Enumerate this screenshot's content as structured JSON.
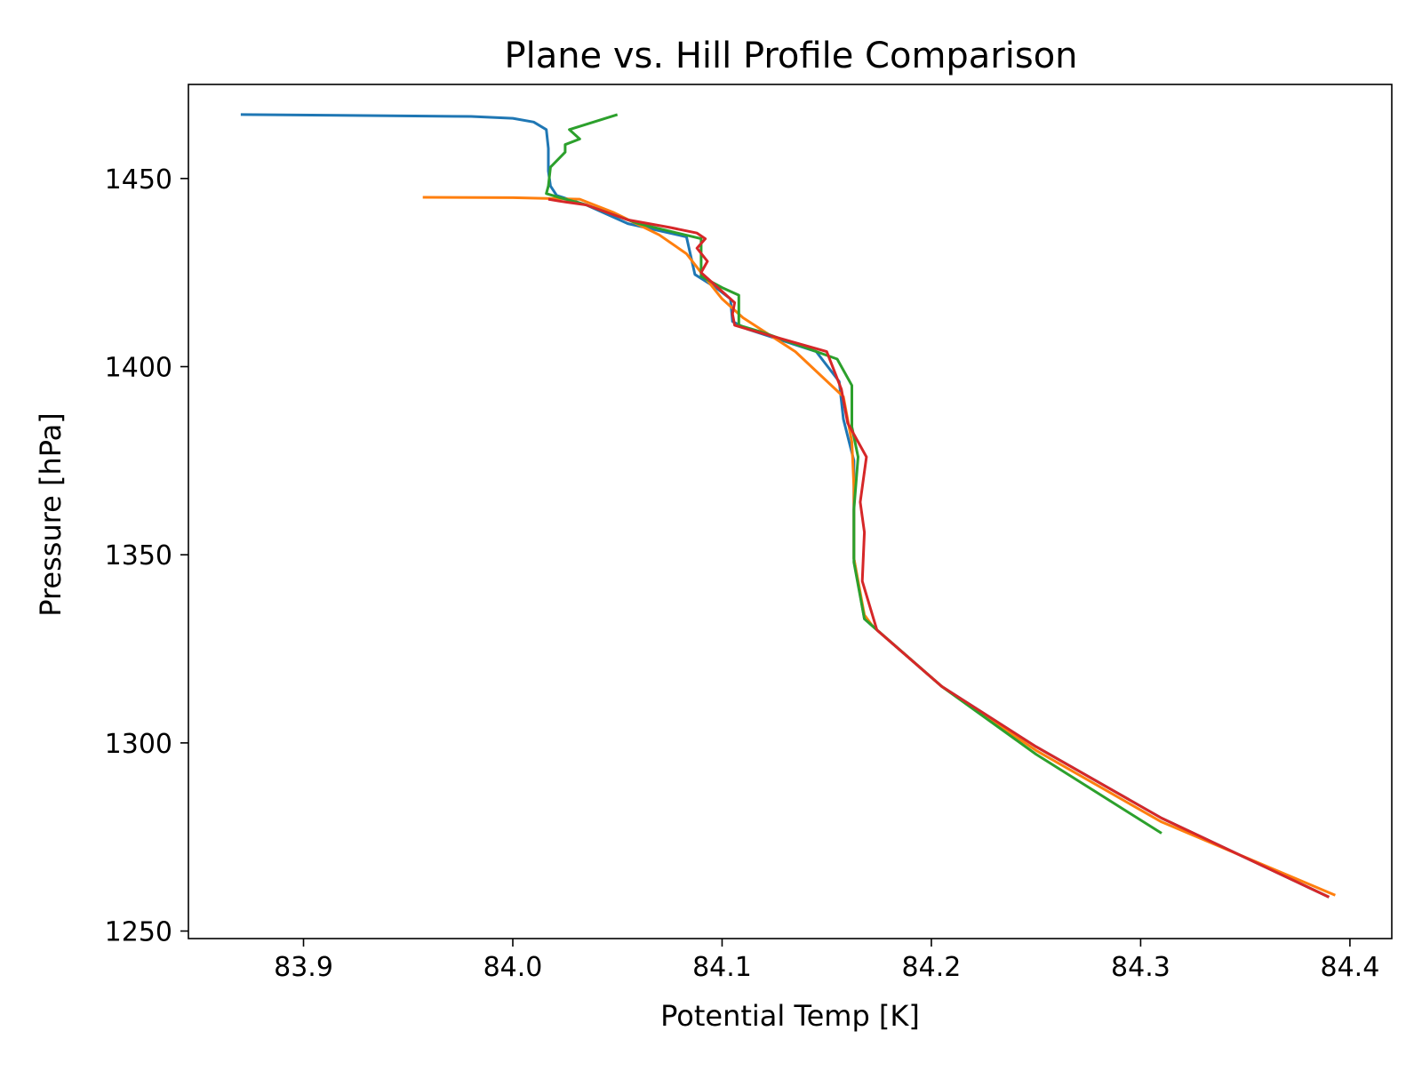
{
  "chart_data": {
    "type": "line",
    "title": "Plane vs. Hill Profile Comparison",
    "xlabel": "Potential Temp [K]",
    "ylabel": "Pressure [hPa]",
    "xlim": [
      83.845,
      84.42
    ],
    "ylim": [
      1248,
      1475
    ],
    "xticks": [
      "83.9",
      "84.0",
      "84.1",
      "84.2",
      "84.3",
      "84.4"
    ],
    "yticks": [
      "1250",
      "1300",
      "1350",
      "1400",
      "1450"
    ],
    "grid": false,
    "legend": "none",
    "series": [
      {
        "color": "#1f77b4",
        "points": [
          [
            83.87,
            1467
          ],
          [
            83.98,
            1466.5
          ],
          [
            84.0,
            1466
          ],
          [
            84.01,
            1465
          ],
          [
            84.016,
            1463
          ],
          [
            84.017,
            1458
          ],
          [
            84.017,
            1452
          ],
          [
            84.018,
            1448
          ],
          [
            84.021,
            1445.5
          ],
          [
            84.035,
            1443
          ],
          [
            84.055,
            1438
          ],
          [
            84.083,
            1434.5
          ],
          [
            84.087,
            1424.5
          ],
          [
            84.097,
            1421
          ],
          [
            84.104,
            1418
          ],
          [
            84.105,
            1412
          ],
          [
            84.112,
            1410
          ],
          [
            84.145,
            1404
          ],
          [
            84.156,
            1396
          ],
          [
            84.158,
            1386
          ],
          [
            84.163,
            1375
          ],
          [
            84.163,
            1349
          ],
          [
            84.168,
            1333
          ],
          [
            84.172,
            1331
          ],
          [
            84.205,
            1315
          ],
          [
            84.25,
            1299
          ],
          [
            84.31,
            1280
          ],
          [
            84.39,
            1259
          ]
        ]
      },
      {
        "color": "#ff7f0e",
        "points": [
          [
            83.957,
            1445
          ],
          [
            84.0,
            1444.9
          ],
          [
            84.032,
            1444.5
          ],
          [
            84.048,
            1441
          ],
          [
            84.07,
            1435
          ],
          [
            84.083,
            1430
          ],
          [
            84.09,
            1425
          ],
          [
            84.1,
            1418
          ],
          [
            84.11,
            1413
          ],
          [
            84.135,
            1404
          ],
          [
            84.158,
            1392
          ],
          [
            84.162,
            1380
          ],
          [
            84.163,
            1368
          ],
          [
            84.163,
            1349
          ],
          [
            84.168,
            1334
          ],
          [
            84.172,
            1331
          ],
          [
            84.205,
            1315
          ],
          [
            84.25,
            1298
          ],
          [
            84.31,
            1279
          ],
          [
            84.393,
            1259.5
          ]
        ]
      },
      {
        "color": "#2ca02c",
        "points": [
          [
            84.05,
            1467
          ],
          [
            84.027,
            1463
          ],
          [
            84.032,
            1460.5
          ],
          [
            84.025,
            1459
          ],
          [
            84.025,
            1457
          ],
          [
            84.018,
            1453
          ],
          [
            84.017,
            1448
          ],
          [
            84.016,
            1446
          ],
          [
            84.022,
            1445
          ],
          [
            84.035,
            1443
          ],
          [
            84.06,
            1438
          ],
          [
            84.09,
            1434
          ],
          [
            84.09,
            1424
          ],
          [
            84.1,
            1421
          ],
          [
            84.108,
            1419
          ],
          [
            84.108,
            1411
          ],
          [
            84.12,
            1409
          ],
          [
            84.155,
            1402
          ],
          [
            84.162,
            1395
          ],
          [
            84.162,
            1384
          ],
          [
            84.165,
            1376
          ],
          [
            84.163,
            1362
          ],
          [
            84.163,
            1348
          ],
          [
            84.168,
            1333
          ],
          [
            84.172,
            1331
          ],
          [
            84.205,
            1315
          ],
          [
            84.25,
            1297
          ],
          [
            84.31,
            1276
          ]
        ]
      },
      {
        "color": "#d62728",
        "points": [
          [
            84.017,
            1444.5
          ],
          [
            84.022,
            1444
          ],
          [
            84.035,
            1443
          ],
          [
            84.055,
            1439
          ],
          [
            84.075,
            1437
          ],
          [
            84.088,
            1435.5
          ],
          [
            84.092,
            1434
          ],
          [
            84.088,
            1431.5
          ],
          [
            84.093,
            1428
          ],
          [
            84.09,
            1425
          ],
          [
            84.098,
            1421
          ],
          [
            84.106,
            1417
          ],
          [
            84.105,
            1414
          ],
          [
            84.106,
            1411
          ],
          [
            84.112,
            1410
          ],
          [
            84.15,
            1404
          ],
          [
            84.157,
            1394
          ],
          [
            84.16,
            1385
          ],
          [
            84.169,
            1376
          ],
          [
            84.166,
            1364
          ],
          [
            84.168,
            1356
          ],
          [
            84.167,
            1343
          ],
          [
            84.174,
            1330
          ],
          [
            84.205,
            1315
          ],
          [
            84.25,
            1299
          ],
          [
            84.31,
            1280
          ],
          [
            84.39,
            1259
          ]
        ]
      }
    ]
  }
}
